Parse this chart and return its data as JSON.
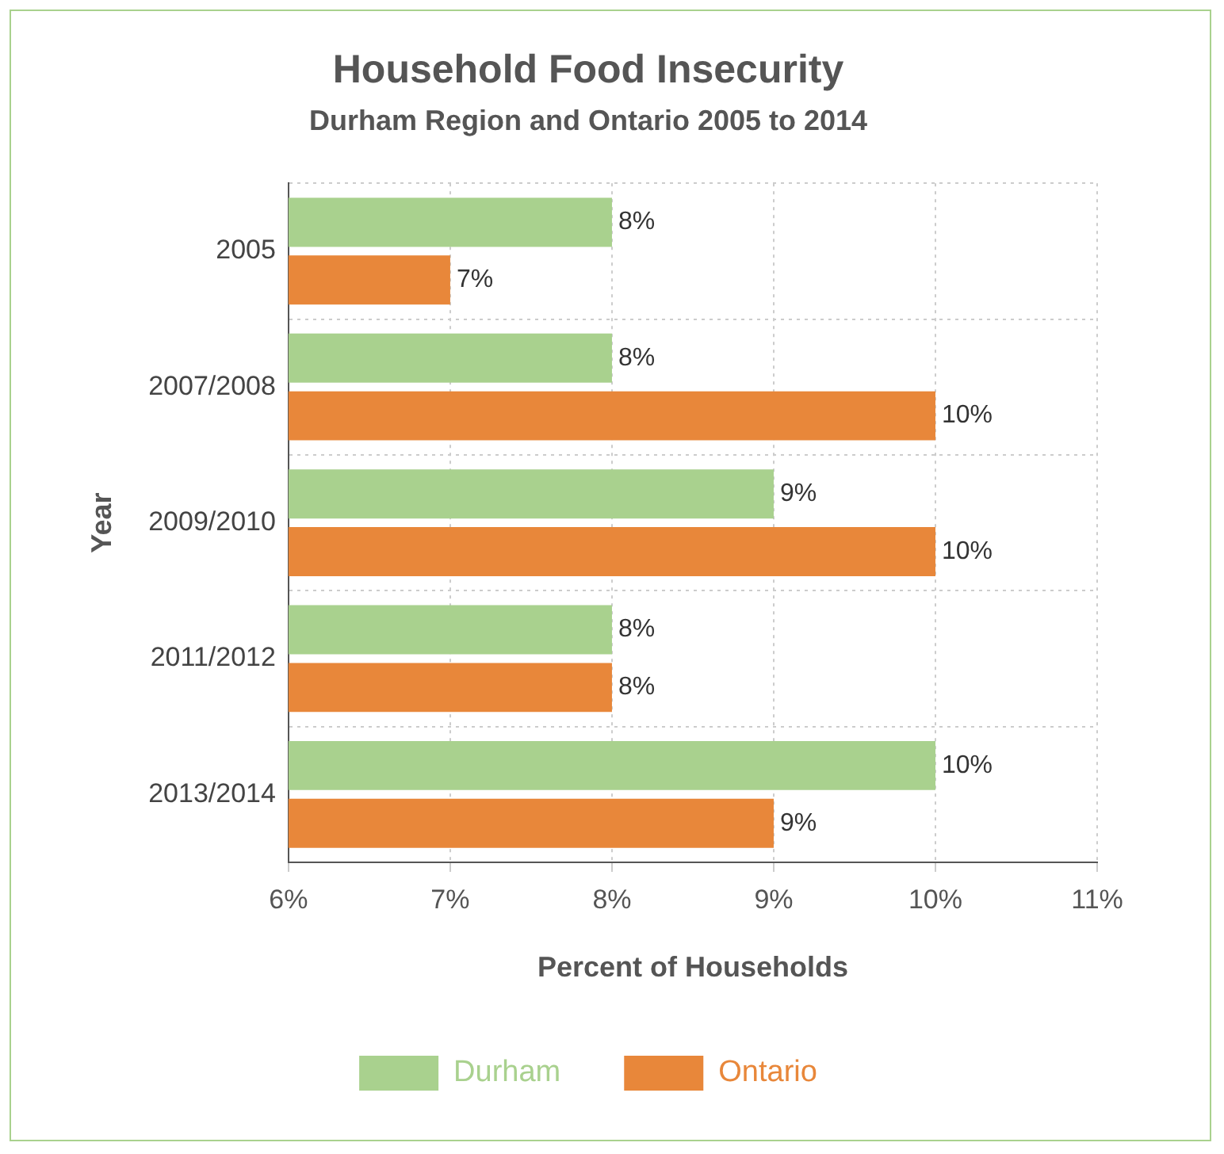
{
  "chart_data": {
    "type": "bar",
    "orientation": "horizontal",
    "title": "Household Food Insecurity",
    "subtitle": "Durham Region and Ontario 2005 to 2014",
    "xlabel": "Percent of Households",
    "ylabel": "Year",
    "categories": [
      "2005",
      "2007/2008",
      "2009/2010",
      "2011/2012",
      "2013/2014"
    ],
    "series": [
      {
        "name": "Durham",
        "color": "#a9d18e",
        "values": [
          8,
          8,
          9,
          8,
          10
        ],
        "value_labels": [
          "8%",
          "8%",
          "9%",
          "8%",
          "10%"
        ]
      },
      {
        "name": "Ontario",
        "color": "#e8873a",
        "values": [
          7,
          10,
          10,
          8,
          9
        ],
        "value_labels": [
          "7%",
          "10%",
          "10%",
          "8%",
          "9%"
        ]
      }
    ],
    "xlim": [
      6,
      11
    ],
    "xticks": [
      {
        "value": 6,
        "label": "6%"
      },
      {
        "value": 7,
        "label": "7%"
      },
      {
        "value": 8,
        "label": "8%"
      },
      {
        "value": 9,
        "label": "9%"
      },
      {
        "value": 10,
        "label": "10%"
      },
      {
        "value": 11,
        "label": "11%"
      }
    ],
    "grid": true,
    "legend": "bottom"
  }
}
